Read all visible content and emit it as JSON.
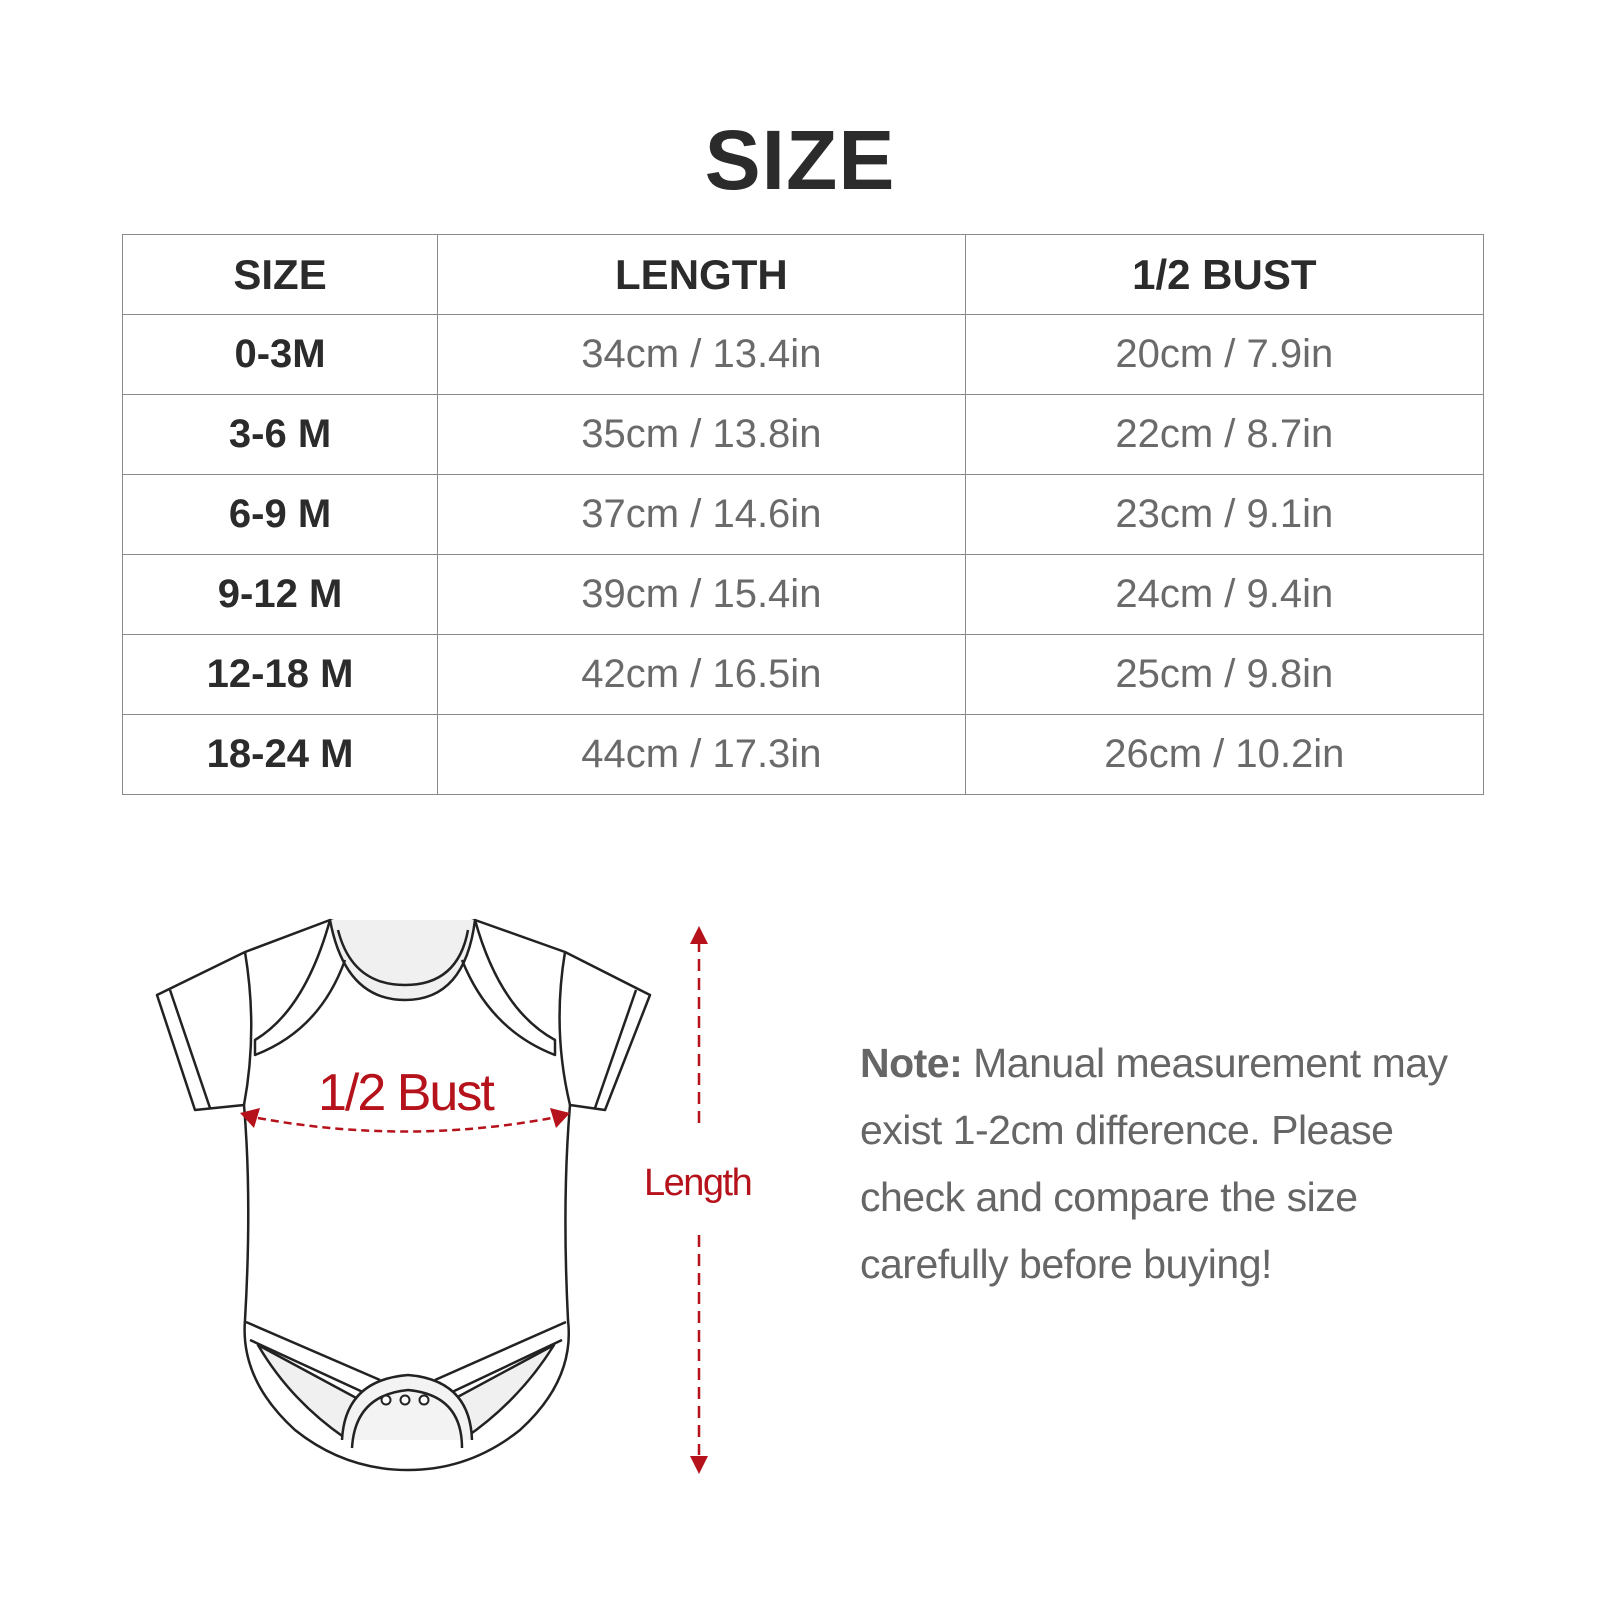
{
  "title": "SIZE",
  "table": {
    "headers": [
      "SIZE",
      "LENGTH",
      "1/2 BUST"
    ],
    "rows": [
      [
        "0-3M",
        "34cm / 13.4in",
        "20cm / 7.9in"
      ],
      [
        "3-6 M",
        "35cm / 13.8in",
        "22cm / 8.7in"
      ],
      [
        "6-9 M",
        "37cm / 14.6in",
        "23cm / 9.1in"
      ],
      [
        "9-12 M",
        "39cm / 15.4in",
        "24cm / 9.4in"
      ],
      [
        "12-18 M",
        "42cm / 16.5in",
        "25cm / 9.8in"
      ],
      [
        "18-24 M",
        "44cm / 17.3in",
        "26cm / 10.2in"
      ]
    ]
  },
  "diagram": {
    "bust_label": "1/2 Bust",
    "length_label": "Length",
    "accent_color": "#b5121b"
  },
  "note": {
    "label": "Note:",
    "text": " Manual measurement may exist 1-2cm difference. Please check and compare the size carefully before buying!"
  }
}
